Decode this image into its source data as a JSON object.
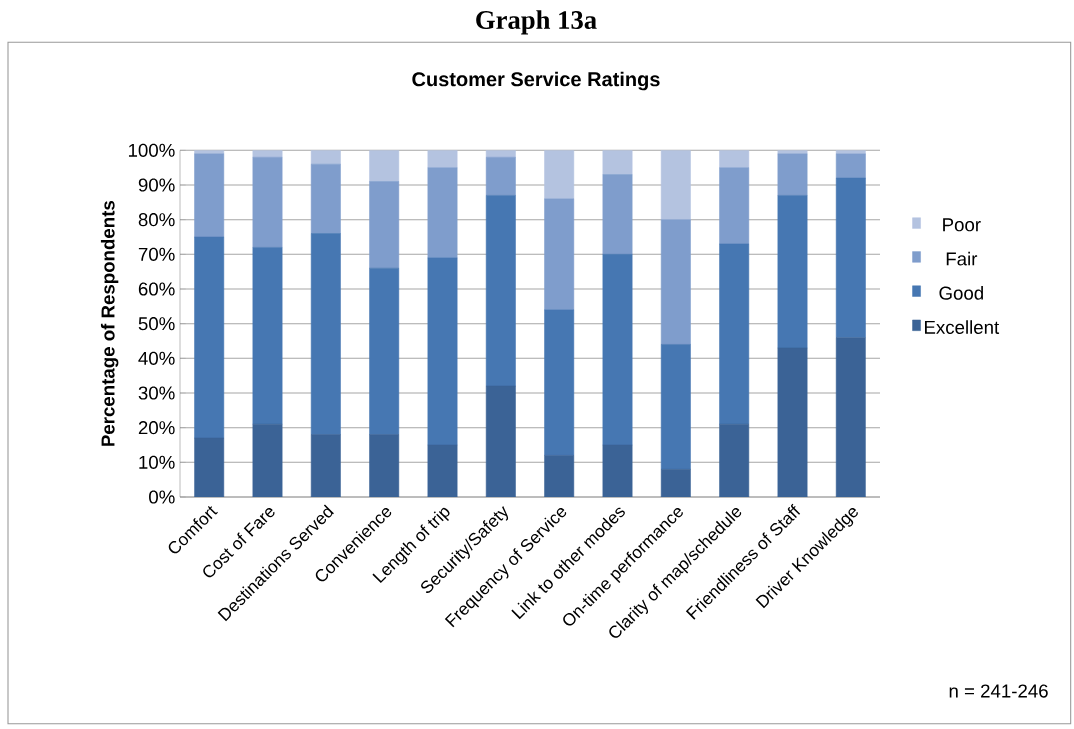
{
  "chart_data": {
    "type": "bar",
    "title": "Customer Service Ratings",
    "ylabel": "Percentage of Respondents",
    "categories": [
      "Comfort",
      "Cost of Fare",
      "Destinations Served",
      "Convenience",
      "Length of trip",
      "Security/Safety",
      "Frequency of Service",
      "Link to other modes",
      "On-time performance",
      "Clarity of map/schedule",
      "Friendliness of Staff",
      "Driver Knowledge"
    ],
    "series": [
      {
        "name": "Excellent",
        "color": "#3b6396",
        "values": [
          17,
          21,
          18,
          18,
          15,
          32,
          12,
          15,
          8,
          21,
          43,
          46
        ]
      },
      {
        "name": "Good",
        "color": "#4677b2",
        "values": [
          58,
          51,
          58,
          48,
          54,
          55,
          42,
          55,
          36,
          52,
          44,
          46
        ]
      },
      {
        "name": "Fair",
        "color": "#7f9dcc",
        "values": [
          24,
          26,
          20,
          25,
          26,
          11,
          32,
          23,
          36,
          22,
          12,
          7
        ]
      },
      {
        "name": "Poor",
        "color": "#b4c3e0",
        "values": [
          1,
          2,
          4,
          9,
          5,
          2,
          14,
          7,
          20,
          5,
          1,
          1
        ]
      }
    ],
    "stacked": true,
    "ylim": [
      0,
      100
    ],
    "yticks": [
      {
        "value": 0,
        "label": "0%"
      },
      {
        "value": 10,
        "label": "10%"
      },
      {
        "value": 20,
        "label": "20%"
      },
      {
        "value": 30,
        "label": "30%"
      },
      {
        "value": 40,
        "label": "40%"
      },
      {
        "value": 50,
        "label": "50%"
      },
      {
        "value": 60,
        "label": "60%"
      },
      {
        "value": 70,
        "label": "70%"
      },
      {
        "value": 80,
        "label": "80%"
      },
      {
        "value": 90,
        "label": "90%"
      },
      {
        "value": 100,
        "label": "100%"
      }
    ],
    "grid": "y",
    "legend": "right",
    "annotations": [
      "Graph 13a",
      "n = 241-246"
    ]
  }
}
